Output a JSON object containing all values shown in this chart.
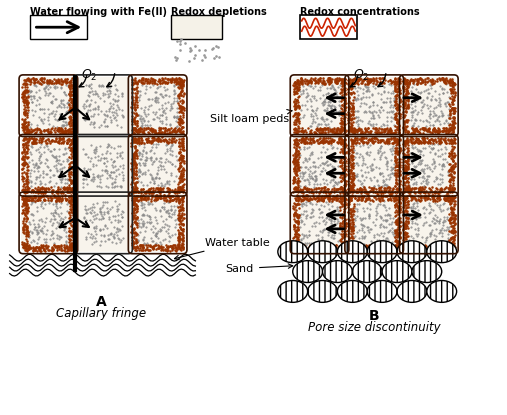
{
  "background_color": "#ffffff",
  "legend_labels": [
    "Water flowing with Fe(II)",
    "Redox depletions",
    "Redox concentrations"
  ],
  "ped_fill_color": "#f8f4ec",
  "ped_border_color": "#8b2000",
  "ped_dot_color": "#666666",
  "label_A": "A",
  "caption_A": "Capillary fringe",
  "label_B": "B",
  "caption_B": "Pore size discontinuity",
  "label_silt": "Silt loam peds",
  "label_water_table": "Water table",
  "label_sand": "Sand",
  "label_o2": "O",
  "fig_width": 5.07,
  "fig_height": 4.15,
  "fig_dpi": 100
}
